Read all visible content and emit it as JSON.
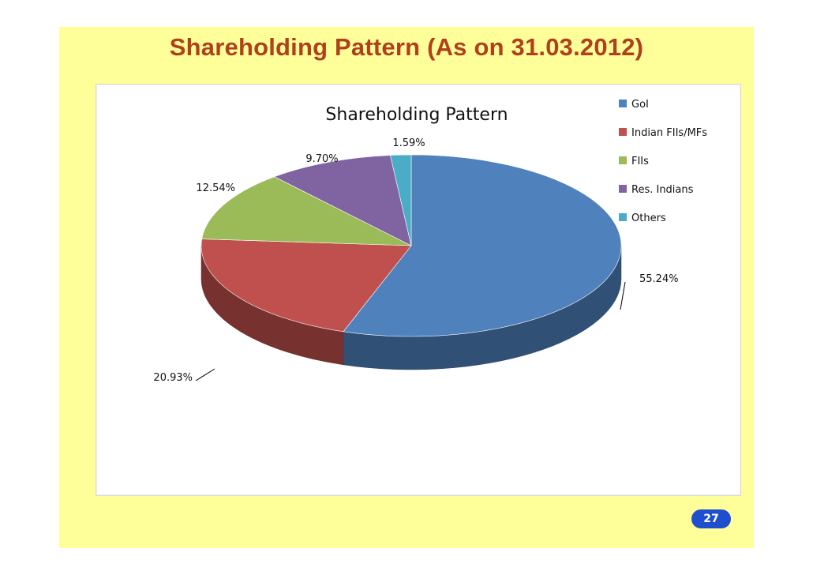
{
  "slide": {
    "title": "Shareholding Pattern (As on 31.03.2012)",
    "page_number": "27"
  },
  "chart_data": {
    "type": "pie",
    "title": "Shareholding Pattern",
    "categories": [
      "GoI",
      "Indian FIIs/MFs",
      "FIIs",
      "Res. Indians",
      "Others"
    ],
    "values": [
      55.24,
      20.93,
      12.54,
      9.7,
      1.59
    ],
    "data_labels": [
      "55.24%",
      "20.93%",
      "12.54%",
      "9.70%",
      "1.59%"
    ],
    "colors": [
      "#4f81bd",
      "#c0504d",
      "#9bbb59",
      "#8064a2",
      "#4bacc6"
    ],
    "legend_position": "right",
    "style": "3d"
  }
}
